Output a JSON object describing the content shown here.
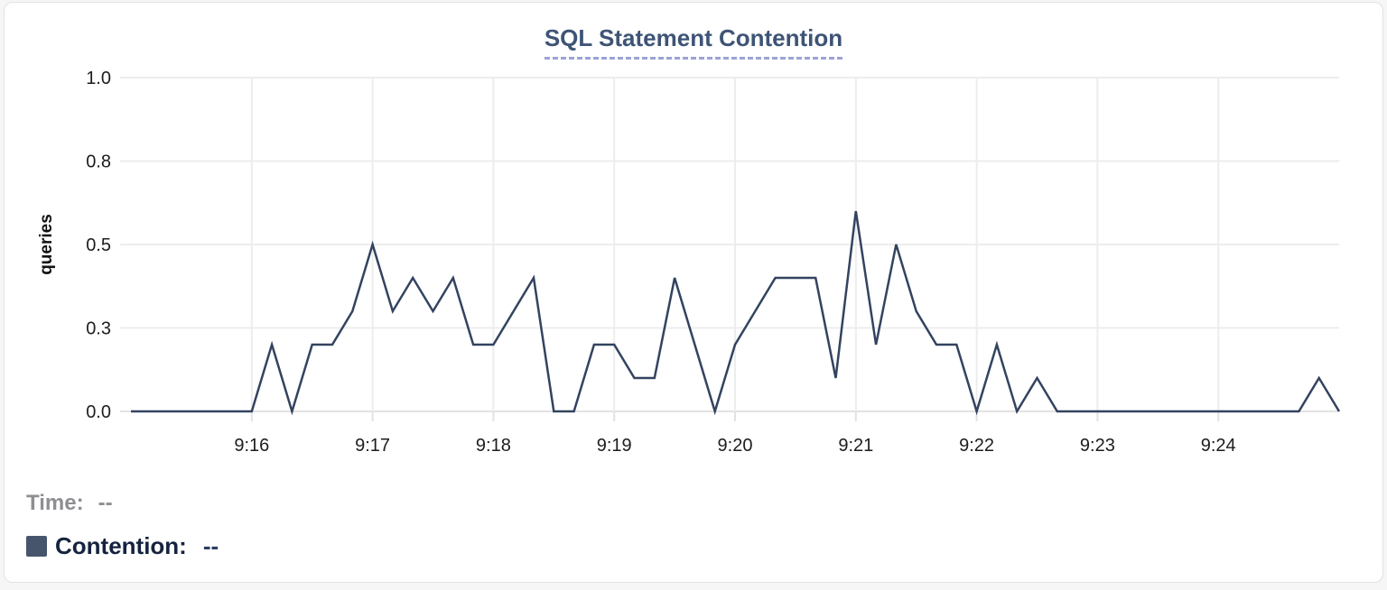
{
  "title": "SQL Statement Contention",
  "tooltip": {
    "time_label": "Time:",
    "time_value": "--",
    "series_label": "Contention:",
    "series_value": "--"
  },
  "colors": {
    "line": "#334360",
    "title": "#3e5476",
    "title_underline": "#9ba3d6",
    "legend_swatch": "#46556c",
    "legend_text": "#15233f",
    "legend_value": "#2c3d60",
    "muted_text": "#8e8e93",
    "gridline": "#ededed",
    "axis_line": "#e2e2e2",
    "tick_text": "#1d1d1f",
    "card_border": "#e2e2e5",
    "background": "#ffffff"
  },
  "chart_data": {
    "type": "line",
    "title": "SQL Statement Contention",
    "xlabel": "",
    "ylabel": "queries",
    "ylim": [
      0,
      1.0
    ],
    "x_start": "9:15:00",
    "x_end": "9:25:00",
    "interval_seconds": 10,
    "grid": true,
    "legend_position": "bottom-left",
    "y_ticks": [
      {
        "value": 0.0,
        "label": "0.0"
      },
      {
        "value": 0.25,
        "label": "0.3"
      },
      {
        "value": 0.5,
        "label": "0.5"
      },
      {
        "value": 0.75,
        "label": "0.8"
      },
      {
        "value": 1.0,
        "label": "1.0"
      }
    ],
    "x_ticks": [
      {
        "time": "9:16:00",
        "label": "9:16"
      },
      {
        "time": "9:17:00",
        "label": "9:17"
      },
      {
        "time": "9:18:00",
        "label": "9:18"
      },
      {
        "time": "9:19:00",
        "label": "9:19"
      },
      {
        "time": "9:20:00",
        "label": "9:20"
      },
      {
        "time": "9:21:00",
        "label": "9:21"
      },
      {
        "time": "9:22:00",
        "label": "9:22"
      },
      {
        "time": "9:23:00",
        "label": "9:23"
      },
      {
        "time": "9:24:00",
        "label": "9:24"
      }
    ],
    "series": [
      {
        "name": "Contention",
        "unit": "queries",
        "color": "#334360",
        "points": [
          [
            "9:15:00",
            0
          ],
          [
            "9:15:10",
            0
          ],
          [
            "9:15:20",
            0
          ],
          [
            "9:15:30",
            0
          ],
          [
            "9:15:40",
            0
          ],
          [
            "9:15:50",
            0
          ],
          [
            "9:16:00",
            0
          ],
          [
            "9:16:10",
            0.2
          ],
          [
            "9:16:20",
            0
          ],
          [
            "9:16:30",
            0.2
          ],
          [
            "9:16:40",
            0.2
          ],
          [
            "9:16:50",
            0.3
          ],
          [
            "9:17:00",
            0.5
          ],
          [
            "9:17:10",
            0.3
          ],
          [
            "9:17:20",
            0.4
          ],
          [
            "9:17:30",
            0.3
          ],
          [
            "9:17:40",
            0.4
          ],
          [
            "9:17:50",
            0.2
          ],
          [
            "9:18:00",
            0.2
          ],
          [
            "9:18:10",
            0.3
          ],
          [
            "9:18:20",
            0.4
          ],
          [
            "9:18:30",
            0
          ],
          [
            "9:18:40",
            0
          ],
          [
            "9:18:50",
            0.2
          ],
          [
            "9:19:00",
            0.2
          ],
          [
            "9:19:10",
            0.1
          ],
          [
            "9:19:20",
            0.1
          ],
          [
            "9:19:30",
            0.4
          ],
          [
            "9:19:40",
            0.2
          ],
          [
            "9:19:50",
            0
          ],
          [
            "9:20:00",
            0.2
          ],
          [
            "9:20:10",
            0.3
          ],
          [
            "9:20:20",
            0.4
          ],
          [
            "9:20:30",
            0.4
          ],
          [
            "9:20:40",
            0.4
          ],
          [
            "9:20:50",
            0.1
          ],
          [
            "9:21:00",
            0.6
          ],
          [
            "9:21:10",
            0.2
          ],
          [
            "9:21:20",
            0.5
          ],
          [
            "9:21:30",
            0.3
          ],
          [
            "9:21:40",
            0.2
          ],
          [
            "9:21:50",
            0.2
          ],
          [
            "9:22:00",
            0
          ],
          [
            "9:22:10",
            0.2
          ],
          [
            "9:22:20",
            0
          ],
          [
            "9:22:30",
            0.1
          ],
          [
            "9:22:40",
            0
          ],
          [
            "9:22:50",
            0
          ],
          [
            "9:23:00",
            0
          ],
          [
            "9:23:10",
            0
          ],
          [
            "9:23:20",
            0
          ],
          [
            "9:23:30",
            0
          ],
          [
            "9:23:40",
            0
          ],
          [
            "9:23:50",
            0
          ],
          [
            "9:24:00",
            0
          ],
          [
            "9:24:10",
            0
          ],
          [
            "9:24:20",
            0
          ],
          [
            "9:24:30",
            0
          ],
          [
            "9:24:40",
            0
          ],
          [
            "9:24:50",
            0.1
          ],
          [
            "9:25:00",
            0
          ]
        ]
      }
    ]
  }
}
